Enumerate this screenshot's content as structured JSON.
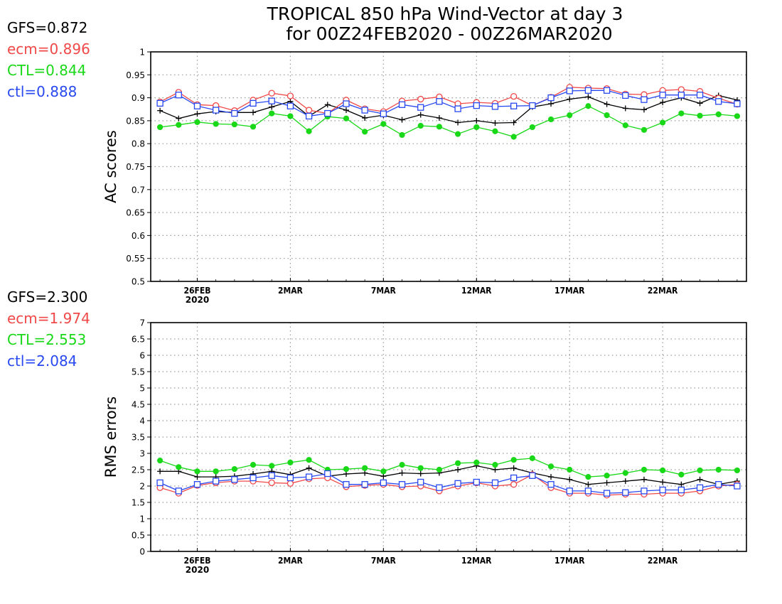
{
  "title": {
    "line1": "TROPICAL 850 hPa Wind-Vector at day 3",
    "line2": "for 00Z24FEB2020 - 00Z26MAR2020"
  },
  "colors": {
    "GFS": "#000000",
    "ecm": "#f04848",
    "CTL": "#18d818",
    "ctl": "#2848f0"
  },
  "ac_legend": [
    {
      "key": "GFS",
      "text": "GFS=0.872"
    },
    {
      "key": "ecm",
      "text": "ecm=0.896"
    },
    {
      "key": "CTL",
      "text": "CTL=0.844"
    },
    {
      "key": "ctl",
      "text": "ctl=0.888"
    }
  ],
  "rms_legend": [
    {
      "key": "GFS",
      "text": "GFS=2.300"
    },
    {
      "key": "ecm",
      "text": "ecm=1.974"
    },
    {
      "key": "CTL",
      "text": "CTL=2.553"
    },
    {
      "key": "ctl",
      "text": "ctl=2.084"
    }
  ],
  "chart_data": [
    {
      "type": "line",
      "ylabel": "AC scores",
      "ylim": [
        0.5,
        1
      ],
      "yticks": [
        "0.5",
        "0.55",
        "0.6",
        "0.65",
        "0.7",
        "0.75",
        "0.8",
        "0.85",
        "0.9",
        "0.95",
        "1"
      ],
      "grid": true,
      "x": [
        "24FEB",
        "25FEB",
        "26FEB",
        "27FEB",
        "28FEB",
        "29FEB",
        "1MAR",
        "2MAR",
        "3MAR",
        "4MAR",
        "5MAR",
        "6MAR",
        "7MAR",
        "8MAR",
        "9MAR",
        "10MAR",
        "11MAR",
        "12MAR",
        "13MAR",
        "14MAR",
        "15MAR",
        "16MAR",
        "17MAR",
        "18MAR",
        "19MAR",
        "20MAR",
        "21MAR",
        "22MAR",
        "23MAR",
        "24MAR",
        "25MAR",
        "26MAR"
      ],
      "xtick_labels": [
        {
          "at": "26FEB",
          "line1": "26FEB",
          "line2": "2020"
        },
        {
          "at": "2MAR",
          "line1": "2MAR",
          "line2": ""
        },
        {
          "at": "7MAR",
          "line1": "7MAR",
          "line2": ""
        },
        {
          "at": "12MAR",
          "line1": "12MAR",
          "line2": ""
        },
        {
          "at": "17MAR",
          "line1": "17MAR",
          "line2": ""
        },
        {
          "at": "22MAR",
          "line1": "22MAR",
          "line2": ""
        }
      ],
      "series": [
        {
          "name": "GFS",
          "marker": "plus",
          "values": [
            0.872,
            0.855,
            0.865,
            0.87,
            0.868,
            0.868,
            0.88,
            0.892,
            0.86,
            0.885,
            0.873,
            0.856,
            0.862,
            0.852,
            0.863,
            0.856,
            0.846,
            0.85,
            0.845,
            0.846,
            0.88,
            0.887,
            0.897,
            0.902,
            0.886,
            0.877,
            0.874,
            0.89,
            0.9,
            0.888,
            0.905,
            0.895
          ]
        },
        {
          "name": "ecm",
          "marker": "circle",
          "values": [
            0.891,
            0.912,
            0.885,
            0.883,
            0.872,
            0.895,
            0.91,
            0.904,
            0.873,
            0.866,
            0.895,
            0.876,
            0.87,
            0.893,
            0.897,
            0.902,
            0.887,
            0.89,
            0.888,
            0.903,
            0.883,
            0.901,
            0.923,
            0.921,
            0.92,
            0.908,
            0.907,
            0.916,
            0.918,
            0.914,
            0.899,
            0.886
          ]
        },
        {
          "name": "CTL",
          "marker": "dot",
          "values": [
            0.836,
            0.841,
            0.847,
            0.843,
            0.842,
            0.837,
            0.866,
            0.86,
            0.827,
            0.859,
            0.855,
            0.826,
            0.843,
            0.819,
            0.839,
            0.837,
            0.821,
            0.836,
            0.827,
            0.815,
            0.836,
            0.853,
            0.862,
            0.882,
            0.862,
            0.84,
            0.83,
            0.846,
            0.866,
            0.861,
            0.864,
            0.86
          ]
        },
        {
          "name": "ctl",
          "marker": "square",
          "values": [
            0.888,
            0.906,
            0.882,
            0.873,
            0.866,
            0.888,
            0.893,
            0.882,
            0.86,
            0.866,
            0.887,
            0.873,
            0.865,
            0.885,
            0.879,
            0.892,
            0.876,
            0.883,
            0.881,
            0.882,
            0.883,
            0.9,
            0.915,
            0.916,
            0.916,
            0.905,
            0.896,
            0.906,
            0.906,
            0.906,
            0.892,
            0.887
          ]
        }
      ]
    },
    {
      "type": "line",
      "ylabel": "RMS errors",
      "ylim": [
        0,
        7
      ],
      "yticks": [
        "0",
        "0.5",
        "1",
        "1.5",
        "2",
        "2.5",
        "3",
        "3.5",
        "4",
        "4.5",
        "5",
        "5.5",
        "6",
        "6.5",
        "7"
      ],
      "grid": true,
      "x": [
        "24FEB",
        "25FEB",
        "26FEB",
        "27FEB",
        "28FEB",
        "29FEB",
        "1MAR",
        "2MAR",
        "3MAR",
        "4MAR",
        "5MAR",
        "6MAR",
        "7MAR",
        "8MAR",
        "9MAR",
        "10MAR",
        "11MAR",
        "12MAR",
        "13MAR",
        "14MAR",
        "15MAR",
        "16MAR",
        "17MAR",
        "18MAR",
        "19MAR",
        "20MAR",
        "21MAR",
        "22MAR",
        "23MAR",
        "24MAR",
        "25MAR",
        "26MAR"
      ],
      "xtick_labels": [
        {
          "at": "26FEB",
          "line1": "26FEB",
          "line2": "2020"
        },
        {
          "at": "2MAR",
          "line1": "2MAR",
          "line2": ""
        },
        {
          "at": "7MAR",
          "line1": "7MAR",
          "line2": ""
        },
        {
          "at": "12MAR",
          "line1": "12MAR",
          "line2": ""
        },
        {
          "at": "17MAR",
          "line1": "17MAR",
          "line2": ""
        },
        {
          "at": "22MAR",
          "line1": "22MAR",
          "line2": ""
        }
      ],
      "series": [
        {
          "name": "GFS",
          "marker": "plus",
          "values": [
            2.45,
            2.45,
            2.28,
            2.28,
            2.3,
            2.37,
            2.45,
            2.35,
            2.55,
            2.3,
            2.37,
            2.4,
            2.3,
            2.4,
            2.38,
            2.4,
            2.5,
            2.62,
            2.5,
            2.55,
            2.4,
            2.28,
            2.2,
            2.05,
            2.1,
            2.15,
            2.2,
            2.12,
            2.05,
            2.2,
            2.05,
            2.15
          ]
        },
        {
          "name": "ecm",
          "marker": "circle",
          "values": [
            1.95,
            1.78,
            2.02,
            2.1,
            2.15,
            2.15,
            2.1,
            2.08,
            2.22,
            2.25,
            1.98,
            2.02,
            2.05,
            1.98,
            2.0,
            1.85,
            2.0,
            2.1,
            2.0,
            2.05,
            2.35,
            1.95,
            1.78,
            1.78,
            1.72,
            1.75,
            1.75,
            1.78,
            1.78,
            1.85,
            2.0,
            2.05
          ]
        },
        {
          "name": "CTL",
          "marker": "dot",
          "values": [
            2.78,
            2.58,
            2.45,
            2.45,
            2.52,
            2.65,
            2.62,
            2.72,
            2.8,
            2.5,
            2.52,
            2.55,
            2.45,
            2.65,
            2.55,
            2.5,
            2.7,
            2.72,
            2.65,
            2.8,
            2.85,
            2.6,
            2.5,
            2.28,
            2.32,
            2.4,
            2.5,
            2.48,
            2.35,
            2.48,
            2.5,
            2.48
          ]
        },
        {
          "name": "ctl",
          "marker": "square",
          "values": [
            2.1,
            1.85,
            2.05,
            2.15,
            2.2,
            2.25,
            2.32,
            2.25,
            2.28,
            2.38,
            2.05,
            2.05,
            2.1,
            2.05,
            2.12,
            1.95,
            2.08,
            2.12,
            2.1,
            2.25,
            2.32,
            2.05,
            1.85,
            1.85,
            1.78,
            1.8,
            1.85,
            1.88,
            1.88,
            1.95,
            2.05,
            2.0
          ]
        }
      ]
    }
  ]
}
